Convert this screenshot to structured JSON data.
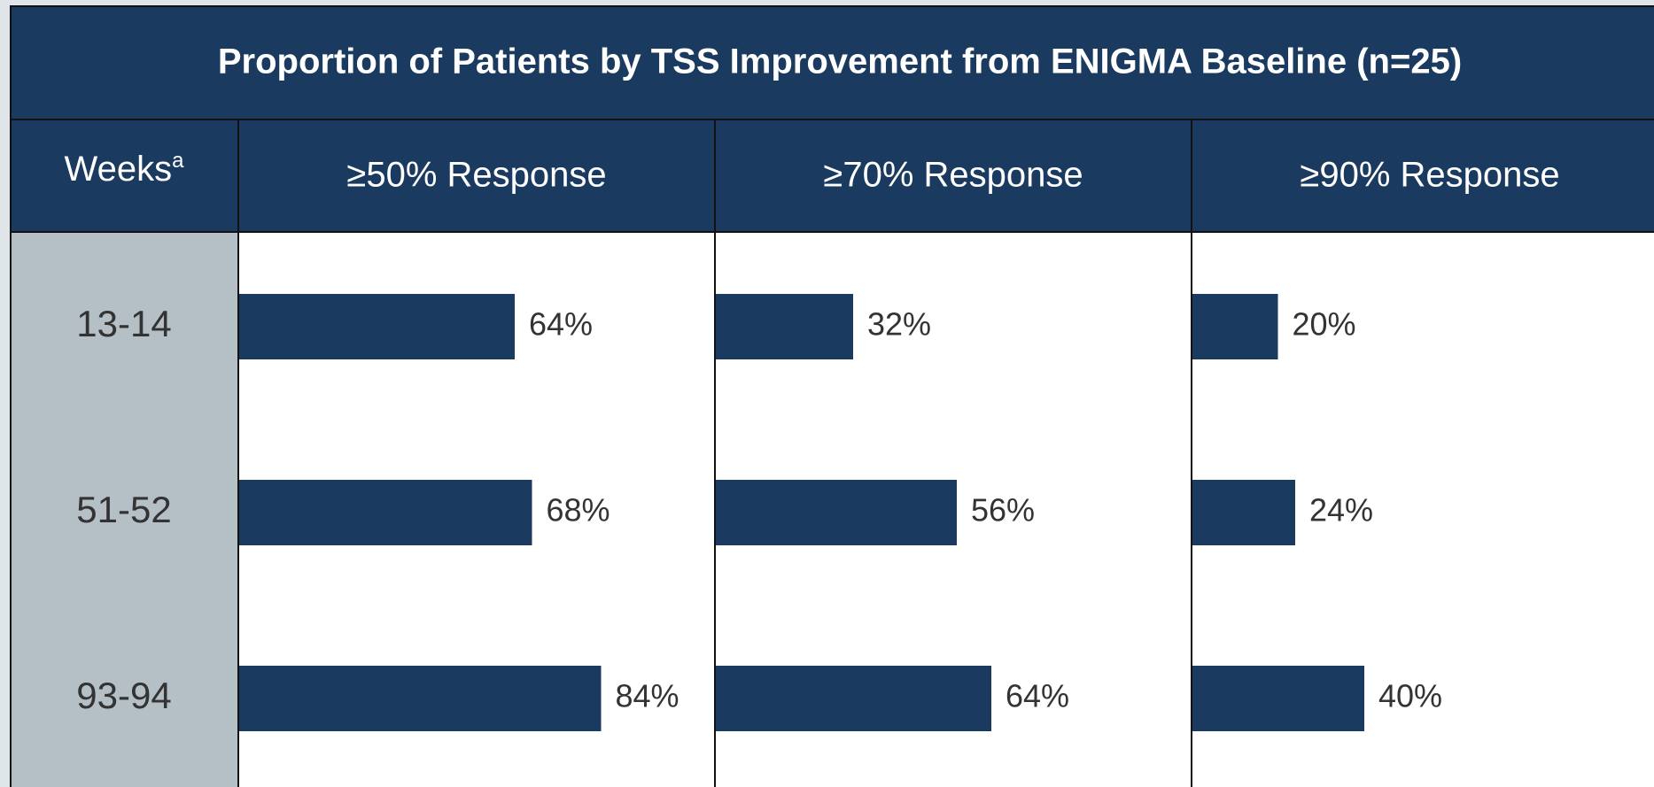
{
  "chart_data": {
    "type": "bar",
    "orientation": "horizontal",
    "title": "Proportion of Patients by TSS Improvement from ENIGMA Baseline (n=25)",
    "category_header": "Weeks",
    "category_header_footnote": "a",
    "categories": [
      "13-14",
      "51-52",
      "93-94"
    ],
    "series": [
      {
        "name": "≥50% Response",
        "color": "#1b3a5f",
        "values": [
          64,
          68,
          84
        ],
        "value_labels": [
          "64%",
          "68%",
          "84%"
        ]
      },
      {
        "name": "≥70% Response",
        "color": "#1b3a5f",
        "values": [
          32,
          56,
          64
        ],
        "value_labels": [
          "32%",
          "56%",
          "64%"
        ]
      },
      {
        "name": "≥90% Response",
        "color": "#1b3a5f",
        "values": [
          20,
          24,
          40
        ],
        "value_labels": [
          "20%",
          "24%",
          "40%"
        ]
      }
    ]
  }
}
